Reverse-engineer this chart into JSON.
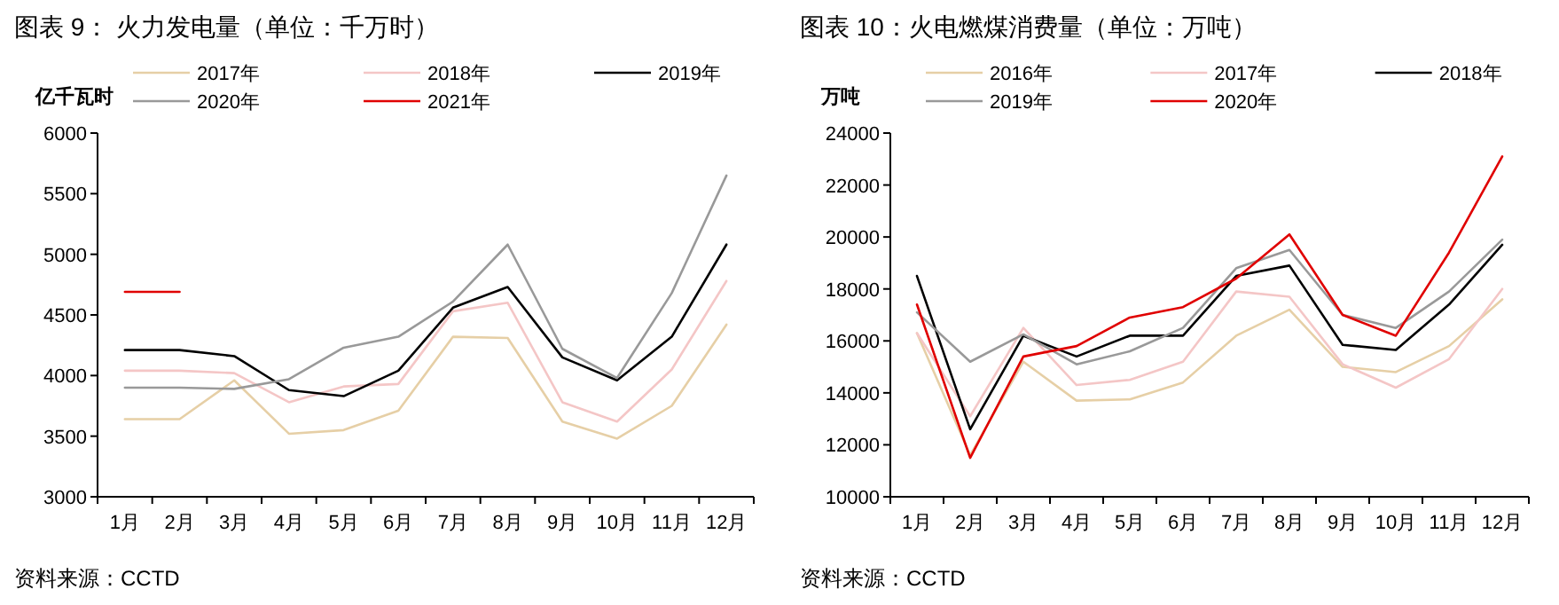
{
  "chart_data": [
    {
      "type": "line",
      "title": "图表 9：  火力发电量（单位：千万时）",
      "ylabel": "亿千瓦时",
      "categories": [
        "1月",
        "2月",
        "3月",
        "4月",
        "5月",
        "6月",
        "7月",
        "8月",
        "9月",
        "10月",
        "11月",
        "12月"
      ],
      "series": [
        {
          "name": "2017年",
          "color": "#e6cfa6",
          "values": [
            3640,
            3640,
            3960,
            3520,
            3550,
            3710,
            4320,
            4310,
            3620,
            3480,
            3750,
            4420
          ]
        },
        {
          "name": "2018年",
          "color": "#f4c6c6",
          "values": [
            4040,
            4040,
            4020,
            3780,
            3910,
            3930,
            4530,
            4600,
            3780,
            3620,
            4050,
            4780
          ]
        },
        {
          "name": "2019年",
          "color": "#000000",
          "values": [
            4210,
            4210,
            4160,
            3880,
            3830,
            4040,
            4560,
            4730,
            4150,
            3960,
            4320,
            5080
          ]
        },
        {
          "name": "2020年",
          "color": "#999999",
          "values": [
            3900,
            3900,
            3890,
            3970,
            4230,
            4320,
            4610,
            5080,
            4220,
            3980,
            4680,
            5650
          ]
        },
        {
          "name": "2021年",
          "color": "#e00000",
          "values": [
            4690,
            4690,
            null,
            null,
            null,
            null,
            null,
            null,
            null,
            null,
            null,
            null
          ]
        }
      ],
      "ylim": [
        3000,
        6000
      ],
      "yticks": [
        3000,
        3500,
        4000,
        4500,
        5000,
        5500,
        6000
      ],
      "grid": false,
      "legend": "top",
      "marker": "none",
      "line_style": "solid",
      "annotations": [
        "资料来源：CCTD"
      ]
    },
    {
      "type": "line",
      "title": "图表 10：火电燃煤消费量（单位：万吨）",
      "ylabel": "万吨",
      "categories": [
        "1月",
        "2月",
        "3月",
        "4月",
        "5月",
        "6月",
        "7月",
        "8月",
        "9月",
        "10月",
        "11月",
        "12月"
      ],
      "series": [
        {
          "name": "2016年",
          "color": "#e6cfa6",
          "values": [
            16300,
            11600,
            15200,
            13700,
            13750,
            14400,
            16200,
            17200,
            15000,
            14800,
            15800,
            17600
          ]
        },
        {
          "name": "2017年",
          "color": "#f4c6c6",
          "values": [
            16300,
            13100,
            16500,
            14300,
            14500,
            15200,
            17900,
            17700,
            15100,
            14200,
            15300,
            18000
          ]
        },
        {
          "name": "2018年",
          "color": "#000000",
          "values": [
            18500,
            12600,
            16200,
            15400,
            16200,
            16200,
            18500,
            18900,
            15850,
            15650,
            17400,
            19700
          ]
        },
        {
          "name": "2019年",
          "color": "#999999",
          "values": [
            17100,
            15200,
            16250,
            15100,
            15600,
            16500,
            18800,
            19500,
            17000,
            16500,
            17900,
            19900
          ]
        },
        {
          "name": "2020年",
          "color": "#e00000",
          "values": [
            17400,
            11500,
            15400,
            15800,
            16900,
            17300,
            18400,
            20100,
            17000,
            16200,
            19400,
            23100
          ]
        }
      ],
      "ylim": [
        10000,
        24000
      ],
      "yticks": [
        10000,
        12000,
        14000,
        16000,
        18000,
        20000,
        22000,
        24000
      ],
      "grid": false,
      "legend": "top",
      "marker": "none",
      "line_style": "solid",
      "annotations": [
        "资料来源：CCTD"
      ]
    }
  ]
}
